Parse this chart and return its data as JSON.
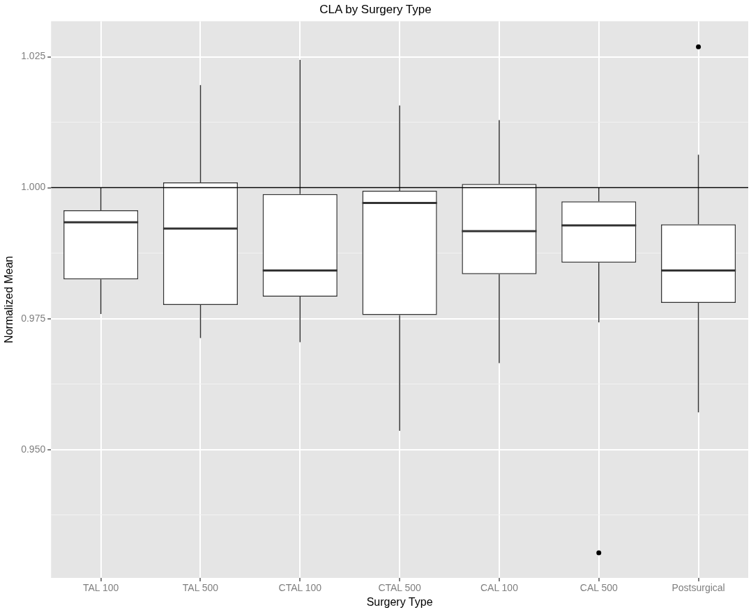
{
  "chart_data": {
    "type": "box",
    "title": "CLA by Surgery Type",
    "xlabel": "Surgery Type",
    "ylabel": "Normalized Mean",
    "categories": [
      "TAL 100",
      "TAL 500",
      "CTAL 100",
      "CTAL 500",
      "CAL 100",
      "CAL 500",
      "Postsurgical"
    ],
    "boxes": [
      {
        "low": 0.9759,
        "q1": 0.9825,
        "median": 0.9934,
        "q3": 0.9957,
        "high": 1.0
      },
      {
        "low": 0.9713,
        "q1": 0.9776,
        "median": 0.9922,
        "q3": 1.001,
        "high": 1.0196
      },
      {
        "low": 0.9705,
        "q1": 0.9792,
        "median": 0.9842,
        "q3": 0.9988,
        "high": 1.0244
      },
      {
        "low": 0.9536,
        "q1": 0.9757,
        "median": 0.9971,
        "q3": 0.9994,
        "high": 1.0157
      },
      {
        "low": 0.9665,
        "q1": 0.9835,
        "median": 0.9917,
        "q3": 1.0007,
        "high": 1.0129
      },
      {
        "low": 0.9743,
        "q1": 0.9857,
        "median": 0.9928,
        "q3": 0.9974,
        "high": 1.0,
        "outliers": [
          0.9303
        ]
      },
      {
        "low": 0.9571,
        "q1": 0.978,
        "median": 0.9842,
        "q3": 0.993,
        "high": 1.0063,
        "outliers": [
          1.0269
        ]
      }
    ],
    "color": "#333333",
    "ylim": [
      0.9255,
      1.0318
    ],
    "yticks": [
      {
        "value": 0.9375,
        "label": null
      },
      {
        "value": 0.95,
        "label": "0.950"
      },
      {
        "value": 0.9625,
        "label": null
      },
      0.975,
      {
        "value": 0.9875,
        "label": null
      },
      {
        "value": 1.0,
        "label": "1.000"
      },
      {
        "value": 1.0125,
        "label": null
      },
      1.025
    ],
    "grid": true,
    "ref_lines": [
      {
        "axis": "y",
        "value": 1.0,
        "color": "#000000"
      }
    ]
  }
}
